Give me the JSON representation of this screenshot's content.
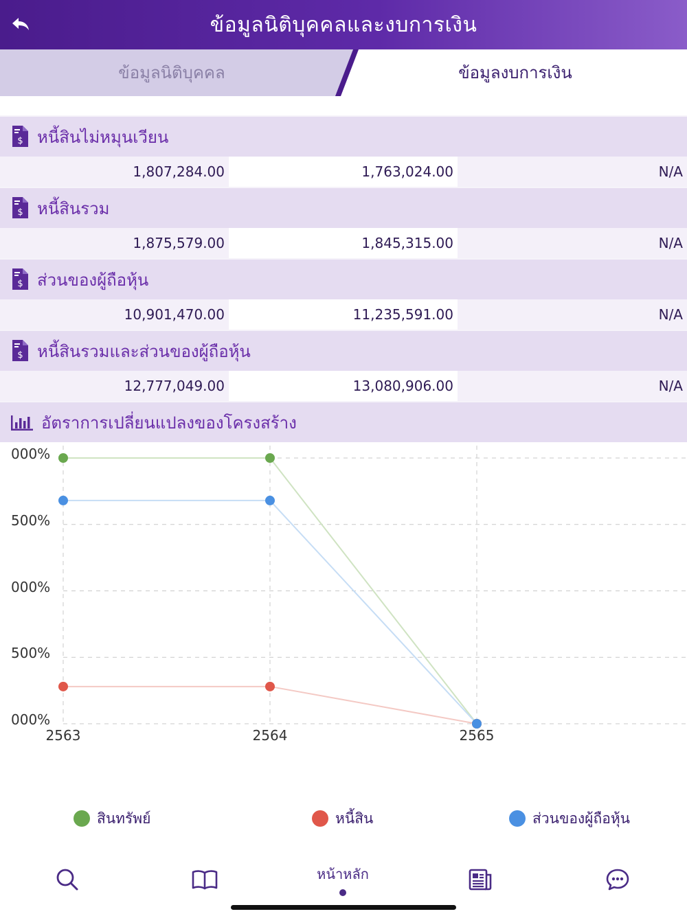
{
  "header": {
    "title": "ข้อมูลนิติบุคคลและงบการเงิน"
  },
  "tabs": [
    {
      "label": "ข้อมูลนิติบุคคล",
      "active": false
    },
    {
      "label": "ข้อมูลงบการเงิน",
      "active": true
    }
  ],
  "sections": [
    {
      "title": "หนี้สินไม่หมุนเวียน",
      "values": [
        "1,807,284.00",
        "1,763,024.00",
        "N/A"
      ]
    },
    {
      "title": "หนี้สินรวม",
      "values": [
        "1,875,579.00",
        "1,845,315.00",
        "N/A"
      ]
    },
    {
      "title": "ส่วนของผู้ถือหุ้น",
      "values": [
        "10,901,470.00",
        "11,235,591.00",
        "N/A"
      ]
    },
    {
      "title": "หนี้สินรวมและส่วนของผู้ถือหุ้น",
      "values": [
        "12,777,049.00",
        "13,080,906.00",
        "N/A"
      ]
    }
  ],
  "chart_section": {
    "title": "อัตราการเปลี่ยนแปลงของโครงสร้าง",
    "icon": "bar-chart-icon"
  },
  "chart_data": {
    "type": "line",
    "x": [
      "2563",
      "2564",
      "2565"
    ],
    "y_tick_labels": [
      "000%",
      "500%",
      "000%",
      "500%",
      "000%"
    ],
    "ylim": [
      0,
      2000
    ],
    "grid": true,
    "series": [
      {
        "name": "สินทรัพย์",
        "color": "#6aa84f",
        "values": [
          2000,
          2000,
          0
        ]
      },
      {
        "name": "หนี้สิน",
        "color": "#e0574a",
        "values": [
          280,
          280,
          0
        ]
      },
      {
        "name": "ส่วนของผู้ถือหุ้น",
        "color": "#4a90e2",
        "values": [
          1680,
          1680,
          0
        ]
      }
    ],
    "legend_position": "bottom"
  },
  "nav": {
    "home_label": "หน้าหลัก",
    "icons": [
      "search-icon",
      "book-icon",
      "news-icon",
      "chat-icon"
    ]
  },
  "colors": {
    "header_start": "#4a1c8c",
    "header_end": "#8a5cc9",
    "section_bg": "#e5dcf1",
    "accent": "#6a2ea9"
  }
}
